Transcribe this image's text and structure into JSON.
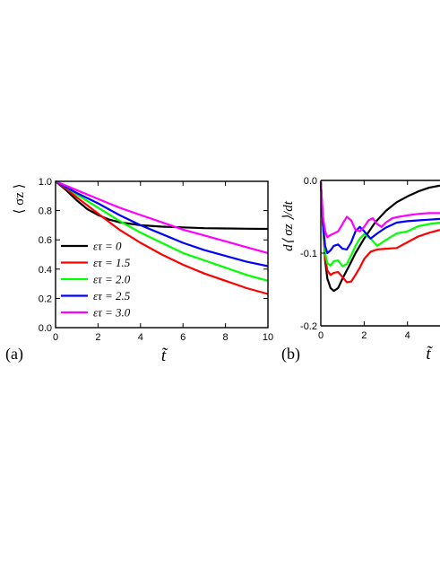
{
  "chart_data": [
    {
      "type": "line",
      "panel_label": "(a)",
      "xlabel": "t̃",
      "ylabel": "⟨ σz ⟩",
      "xlim": [
        0,
        10
      ],
      "ylim": [
        0.0,
        1.0
      ],
      "xticks": [
        0,
        2,
        4,
        6,
        8,
        10
      ],
      "yticks": [
        0.0,
        0.2,
        0.4,
        0.6,
        0.8,
        1.0
      ],
      "ytick_labels": [
        "0.0",
        "0.2",
        "0.4",
        "0.6",
        "0.8",
        "1.0"
      ],
      "legend_position": "bottom-left",
      "series": [
        {
          "name": "ετ = 0",
          "color": "#000000",
          "x": [
            0,
            0.5,
            1,
            1.5,
            2,
            2.5,
            3,
            4,
            5,
            6,
            7,
            8,
            9,
            10
          ],
          "y": [
            1.0,
            0.94,
            0.87,
            0.81,
            0.77,
            0.74,
            0.72,
            0.7,
            0.69,
            0.685,
            0.68,
            0.678,
            0.676,
            0.675
          ]
        },
        {
          "name": "ετ = 1.5",
          "color": "#ff0000",
          "x": [
            0,
            0.5,
            1,
            2,
            3,
            4,
            5,
            6,
            7,
            8,
            9,
            10
          ],
          "y": [
            1.0,
            0.95,
            0.89,
            0.78,
            0.67,
            0.58,
            0.5,
            0.43,
            0.37,
            0.32,
            0.27,
            0.23
          ]
        },
        {
          "name": "ετ = 2.0",
          "color": "#00ff00",
          "x": [
            0,
            0.5,
            1,
            2,
            3,
            4,
            5,
            6,
            7,
            8,
            9,
            10
          ],
          "y": [
            1.0,
            0.96,
            0.91,
            0.82,
            0.73,
            0.65,
            0.58,
            0.51,
            0.46,
            0.41,
            0.36,
            0.32
          ]
        },
        {
          "name": "ετ = 2.5",
          "color": "#0000ff",
          "x": [
            0,
            0.5,
            1,
            2,
            3,
            4,
            5,
            6,
            7,
            8,
            9,
            10
          ],
          "y": [
            1.0,
            0.96,
            0.92,
            0.85,
            0.77,
            0.7,
            0.64,
            0.58,
            0.53,
            0.49,
            0.45,
            0.42
          ]
        },
        {
          "name": "ετ = 3.0",
          "color": "#ff00ff",
          "x": [
            0,
            0.5,
            1,
            2,
            3,
            4,
            5,
            6,
            7,
            8,
            9,
            10
          ],
          "y": [
            1.0,
            0.97,
            0.94,
            0.88,
            0.82,
            0.77,
            0.72,
            0.67,
            0.63,
            0.59,
            0.55,
            0.51
          ]
        }
      ]
    },
    {
      "type": "line",
      "panel_label": "(b)",
      "xlabel": "t̃",
      "ylabel": "d⟨ σz ⟩/dt",
      "xlim": [
        0,
        5.5
      ],
      "ylim": [
        -0.2,
        0.0
      ],
      "xticks": [
        0,
        2,
        4
      ],
      "yticks": [
        0.0,
        -0.1,
        -0.2
      ],
      "ytick_labels": [
        "0.0",
        "-0.1",
        "-0.2"
      ],
      "series": [
        {
          "name": "ετ = 0",
          "color": "#000000",
          "x": [
            0,
            0.1,
            0.2,
            0.3,
            0.45,
            0.6,
            0.8,
            1.0,
            1.3,
            1.6,
            2.0,
            2.5,
            3.0,
            3.5,
            4.0,
            4.5,
            5.0,
            5.5
          ],
          "y": [
            -0.002,
            -0.06,
            -0.11,
            -0.135,
            -0.148,
            -0.152,
            -0.148,
            -0.135,
            -0.118,
            -0.1,
            -0.08,
            -0.058,
            -0.042,
            -0.03,
            -0.022,
            -0.015,
            -0.01,
            -0.007
          ]
        },
        {
          "name": "ετ = 1.5",
          "color": "#ff0000",
          "x": [
            0,
            0.1,
            0.2,
            0.3,
            0.45,
            0.6,
            0.8,
            1.0,
            1.2,
            1.4,
            1.6,
            1.8,
            2.0,
            2.3,
            2.6,
            3.0,
            3.5,
            4.0,
            4.5,
            5.0,
            5.5
          ],
          "y": [
            -0.002,
            -0.06,
            -0.105,
            -0.124,
            -0.13,
            -0.127,
            -0.126,
            -0.133,
            -0.14,
            -0.139,
            -0.13,
            -0.12,
            -0.108,
            -0.098,
            -0.095,
            -0.094,
            -0.093,
            -0.085,
            -0.077,
            -0.072,
            -0.068
          ]
        },
        {
          "name": "ετ = 2.0",
          "color": "#00ff00",
          "x": [
            0,
            0.1,
            0.2,
            0.3,
            0.45,
            0.6,
            0.8,
            1.0,
            1.2,
            1.4,
            1.6,
            1.8,
            2.0,
            2.3,
            2.6,
            3.0,
            3.5,
            4.0,
            4.5,
            5.0,
            5.5
          ],
          "y": [
            -0.002,
            -0.06,
            -0.1,
            -0.114,
            -0.117,
            -0.111,
            -0.11,
            -0.118,
            -0.115,
            -0.103,
            -0.09,
            -0.08,
            -0.074,
            -0.08,
            -0.09,
            -0.082,
            -0.073,
            -0.07,
            -0.063,
            -0.06,
            -0.058
          ]
        },
        {
          "name": "ετ = 2.5",
          "color": "#0000ff",
          "x": [
            0,
            0.1,
            0.2,
            0.3,
            0.45,
            0.6,
            0.8,
            1.0,
            1.2,
            1.4,
            1.6,
            1.8,
            2.0,
            2.3,
            2.6,
            3.0,
            3.5,
            4.0,
            4.5,
            5.0,
            5.5
          ],
          "y": [
            -0.002,
            -0.06,
            -0.09,
            -0.1,
            -0.096,
            -0.09,
            -0.088,
            -0.094,
            -0.095,
            -0.085,
            -0.07,
            -0.064,
            -0.07,
            -0.08,
            -0.073,
            -0.065,
            -0.058,
            -0.056,
            -0.055,
            -0.054,
            -0.053
          ]
        },
        {
          "name": "ετ = 3.0",
          "color": "#ff00ff",
          "x": [
            0,
            0.1,
            0.2,
            0.3,
            0.45,
            0.6,
            0.8,
            1.0,
            1.2,
            1.4,
            1.6,
            1.8,
            2.0,
            2.2,
            2.4,
            2.6,
            2.8,
            3.0,
            3.3,
            3.6,
            4.0,
            4.5,
            5.0,
            5.5
          ],
          "y": [
            -0.002,
            -0.05,
            -0.07,
            -0.078,
            -0.075,
            -0.073,
            -0.07,
            -0.06,
            -0.05,
            -0.055,
            -0.068,
            -0.07,
            -0.064,
            -0.055,
            -0.052,
            -0.06,
            -0.064,
            -0.058,
            -0.052,
            -0.05,
            -0.048,
            -0.046,
            -0.045,
            -0.045
          ]
        }
      ]
    }
  ]
}
